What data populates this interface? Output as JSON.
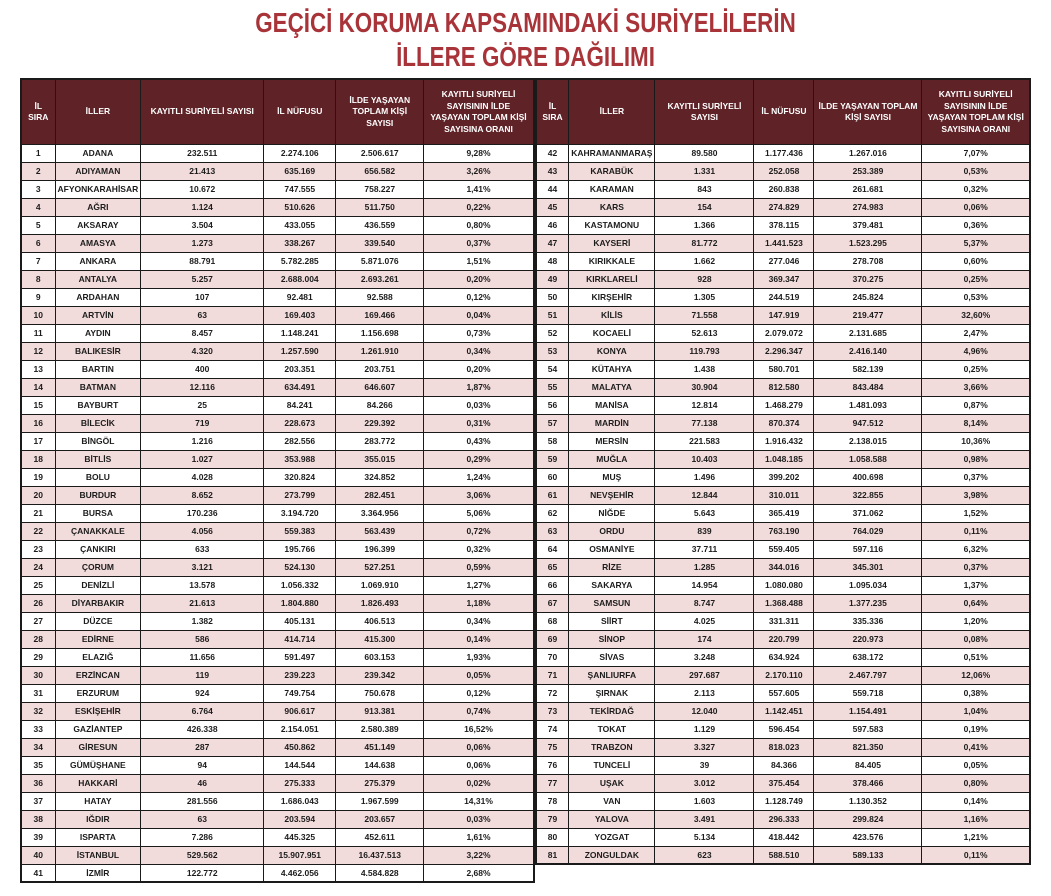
{
  "title": {
    "line1": "GEÇİCİ KORUMA KAPSAMINDAKİ SURİYELİLERİN",
    "line2": "İLLERE GÖRE DAĞILIMI"
  },
  "columns": [
    "İL SIRA",
    "İLLER",
    "KAYITLI SURİYELİ SAYISI",
    "İL NÜFUSU",
    "İLDE YAŞAYAN TOPLAM KİŞİ SAYISI",
    "KAYITLI SURİYELİ SAYISININ İLDE YAŞAYAN TOPLAM KİŞİ SAYISINA ORANI"
  ],
  "colors": {
    "title_red": "#a8343a",
    "header_bg": "#5e2227",
    "header_text": "#ffffff",
    "row_stripe": "#f2dcdb",
    "row_white": "#ffffff",
    "border": "#1a1a1a",
    "cell_text": "#1c1c1c"
  },
  "rows_left": [
    [
      "1",
      "ADANA",
      "232.511",
      "2.274.106",
      "2.506.617",
      "9,28%"
    ],
    [
      "2",
      "ADIYAMAN",
      "21.413",
      "635.169",
      "656.582",
      "3,26%"
    ],
    [
      "3",
      "AFYONKARAHİSAR",
      "10.672",
      "747.555",
      "758.227",
      "1,41%"
    ],
    [
      "4",
      "AĞRI",
      "1.124",
      "510.626",
      "511.750",
      "0,22%"
    ],
    [
      "5",
      "AKSARAY",
      "3.504",
      "433.055",
      "436.559",
      "0,80%"
    ],
    [
      "6",
      "AMASYA",
      "1.273",
      "338.267",
      "339.540",
      "0,37%"
    ],
    [
      "7",
      "ANKARA",
      "88.791",
      "5.782.285",
      "5.871.076",
      "1,51%"
    ],
    [
      "8",
      "ANTALYA",
      "5.257",
      "2.688.004",
      "2.693.261",
      "0,20%"
    ],
    [
      "9",
      "ARDAHAN",
      "107",
      "92.481",
      "92.588",
      "0,12%"
    ],
    [
      "10",
      "ARTVİN",
      "63",
      "169.403",
      "169.466",
      "0,04%"
    ],
    [
      "11",
      "AYDIN",
      "8.457",
      "1.148.241",
      "1.156.698",
      "0,73%"
    ],
    [
      "12",
      "BALIKESİR",
      "4.320",
      "1.257.590",
      "1.261.910",
      "0,34%"
    ],
    [
      "13",
      "BARTIN",
      "400",
      "203.351",
      "203.751",
      "0,20%"
    ],
    [
      "14",
      "BATMAN",
      "12.116",
      "634.491",
      "646.607",
      "1,87%"
    ],
    [
      "15",
      "BAYBURT",
      "25",
      "84.241",
      "84.266",
      "0,03%"
    ],
    [
      "16",
      "BİLECİK",
      "719",
      "228.673",
      "229.392",
      "0,31%"
    ],
    [
      "17",
      "BİNGÖL",
      "1.216",
      "282.556",
      "283.772",
      "0,43%"
    ],
    [
      "18",
      "BİTLİS",
      "1.027",
      "353.988",
      "355.015",
      "0,29%"
    ],
    [
      "19",
      "BOLU",
      "4.028",
      "320.824",
      "324.852",
      "1,24%"
    ],
    [
      "20",
      "BURDUR",
      "8.652",
      "273.799",
      "282.451",
      "3,06%"
    ],
    [
      "21",
      "BURSA",
      "170.236",
      "3.194.720",
      "3.364.956",
      "5,06%"
    ],
    [
      "22",
      "ÇANAKKALE",
      "4.056",
      "559.383",
      "563.439",
      "0,72%"
    ],
    [
      "23",
      "ÇANKIRI",
      "633",
      "195.766",
      "196.399",
      "0,32%"
    ],
    [
      "24",
      "ÇORUM",
      "3.121",
      "524.130",
      "527.251",
      "0,59%"
    ],
    [
      "25",
      "DENİZLİ",
      "13.578",
      "1.056.332",
      "1.069.910",
      "1,27%"
    ],
    [
      "26",
      "DİYARBAKIR",
      "21.613",
      "1.804.880",
      "1.826.493",
      "1,18%"
    ],
    [
      "27",
      "DÜZCE",
      "1.382",
      "405.131",
      "406.513",
      "0,34%"
    ],
    [
      "28",
      "EDİRNE",
      "586",
      "414.714",
      "415.300",
      "0,14%"
    ],
    [
      "29",
      "ELAZIĞ",
      "11.656",
      "591.497",
      "603.153",
      "1,93%"
    ],
    [
      "30",
      "ERZİNCAN",
      "119",
      "239.223",
      "239.342",
      "0,05%"
    ],
    [
      "31",
      "ERZURUM",
      "924",
      "749.754",
      "750.678",
      "0,12%"
    ],
    [
      "32",
      "ESKİŞEHİR",
      "6.764",
      "906.617",
      "913.381",
      "0,74%"
    ],
    [
      "33",
      "GAZİANTEP",
      "426.338",
      "2.154.051",
      "2.580.389",
      "16,52%"
    ],
    [
      "34",
      "GİRESUN",
      "287",
      "450.862",
      "451.149",
      "0,06%"
    ],
    [
      "35",
      "GÜMÜŞHANE",
      "94",
      "144.544",
      "144.638",
      "0,06%"
    ],
    [
      "36",
      "HAKKARİ",
      "46",
      "275.333",
      "275.379",
      "0,02%"
    ],
    [
      "37",
      "HATAY",
      "281.556",
      "1.686.043",
      "1.967.599",
      "14,31%"
    ],
    [
      "38",
      "IĞDIR",
      "63",
      "203.594",
      "203.657",
      "0,03%"
    ],
    [
      "39",
      "ISPARTA",
      "7.286",
      "445.325",
      "452.611",
      "1,61%"
    ],
    [
      "40",
      "İSTANBUL",
      "529.562",
      "15.907.951",
      "16.437.513",
      "3,22%"
    ],
    [
      "41",
      "İZMİR",
      "122.772",
      "4.462.056",
      "4.584.828",
      "2,68%"
    ]
  ],
  "rows_right": [
    [
      "42",
      "KAHRAMANMARAŞ",
      "89.580",
      "1.177.436",
      "1.267.016",
      "7,07%"
    ],
    [
      "43",
      "KARABÜK",
      "1.331",
      "252.058",
      "253.389",
      "0,53%"
    ],
    [
      "44",
      "KARAMAN",
      "843",
      "260.838",
      "261.681",
      "0,32%"
    ],
    [
      "45",
      "KARS",
      "154",
      "274.829",
      "274.983",
      "0,06%"
    ],
    [
      "46",
      "KASTAMONU",
      "1.366",
      "378.115",
      "379.481",
      "0,36%"
    ],
    [
      "47",
      "KAYSERİ",
      "81.772",
      "1.441.523",
      "1.523.295",
      "5,37%"
    ],
    [
      "48",
      "KIRIKKALE",
      "1.662",
      "277.046",
      "278.708",
      "0,60%"
    ],
    [
      "49",
      "KIRKLARELİ",
      "928",
      "369.347",
      "370.275",
      "0,25%"
    ],
    [
      "50",
      "KIRŞEHİR",
      "1.305",
      "244.519",
      "245.824",
      "0,53%"
    ],
    [
      "51",
      "KİLİS",
      "71.558",
      "147.919",
      "219.477",
      "32,60%"
    ],
    [
      "52",
      "KOCAELİ",
      "52.613",
      "2.079.072",
      "2.131.685",
      "2,47%"
    ],
    [
      "53",
      "KONYA",
      "119.793",
      "2.296.347",
      "2.416.140",
      "4,96%"
    ],
    [
      "54",
      "KÜTAHYA",
      "1.438",
      "580.701",
      "582.139",
      "0,25%"
    ],
    [
      "55",
      "MALATYA",
      "30.904",
      "812.580",
      "843.484",
      "3,66%"
    ],
    [
      "56",
      "MANİSA",
      "12.814",
      "1.468.279",
      "1.481.093",
      "0,87%"
    ],
    [
      "57",
      "MARDİN",
      "77.138",
      "870.374",
      "947.512",
      "8,14%"
    ],
    [
      "58",
      "MERSİN",
      "221.583",
      "1.916.432",
      "2.138.015",
      "10,36%"
    ],
    [
      "59",
      "MUĞLA",
      "10.403",
      "1.048.185",
      "1.058.588",
      "0,98%"
    ],
    [
      "60",
      "MUŞ",
      "1.496",
      "399.202",
      "400.698",
      "0,37%"
    ],
    [
      "61",
      "NEVŞEHİR",
      "12.844",
      "310.011",
      "322.855",
      "3,98%"
    ],
    [
      "62",
      "NİĞDE",
      "5.643",
      "365.419",
      "371.062",
      "1,52%"
    ],
    [
      "63",
      "ORDU",
      "839",
      "763.190",
      "764.029",
      "0,11%"
    ],
    [
      "64",
      "OSMANİYE",
      "37.711",
      "559.405",
      "597.116",
      "6,32%"
    ],
    [
      "65",
      "RİZE",
      "1.285",
      "344.016",
      "345.301",
      "0,37%"
    ],
    [
      "66",
      "SAKARYA",
      "14.954",
      "1.080.080",
      "1.095.034",
      "1,37%"
    ],
    [
      "67",
      "SAMSUN",
      "8.747",
      "1.368.488",
      "1.377.235",
      "0,64%"
    ],
    [
      "68",
      "SİİRT",
      "4.025",
      "331.311",
      "335.336",
      "1,20%"
    ],
    [
      "69",
      "SİNOP",
      "174",
      "220.799",
      "220.973",
      "0,08%"
    ],
    [
      "70",
      "SİVAS",
      "3.248",
      "634.924",
      "638.172",
      "0,51%"
    ],
    [
      "71",
      "ŞANLIURFA",
      "297.687",
      "2.170.110",
      "2.467.797",
      "12,06%"
    ],
    [
      "72",
      "ŞIRNAK",
      "2.113",
      "557.605",
      "559.718",
      "0,38%"
    ],
    [
      "73",
      "TEKİRDAĞ",
      "12.040",
      "1.142.451",
      "1.154.491",
      "1,04%"
    ],
    [
      "74",
      "TOKAT",
      "1.129",
      "596.454",
      "597.583",
      "0,19%"
    ],
    [
      "75",
      "TRABZON",
      "3.327",
      "818.023",
      "821.350",
      "0,41%"
    ],
    [
      "76",
      "TUNCELİ",
      "39",
      "84.366",
      "84.405",
      "0,05%"
    ],
    [
      "77",
      "UŞAK",
      "3.012",
      "375.454",
      "378.466",
      "0,80%"
    ],
    [
      "78",
      "VAN",
      "1.603",
      "1.128.749",
      "1.130.352",
      "0,14%"
    ],
    [
      "79",
      "YALOVA",
      "3.491",
      "296.333",
      "299.824",
      "1,16%"
    ],
    [
      "80",
      "YOZGAT",
      "5.134",
      "418.442",
      "423.576",
      "1,21%"
    ],
    [
      "81",
      "ZONGULDAK",
      "623",
      "588.510",
      "589.133",
      "0,11%"
    ]
  ]
}
